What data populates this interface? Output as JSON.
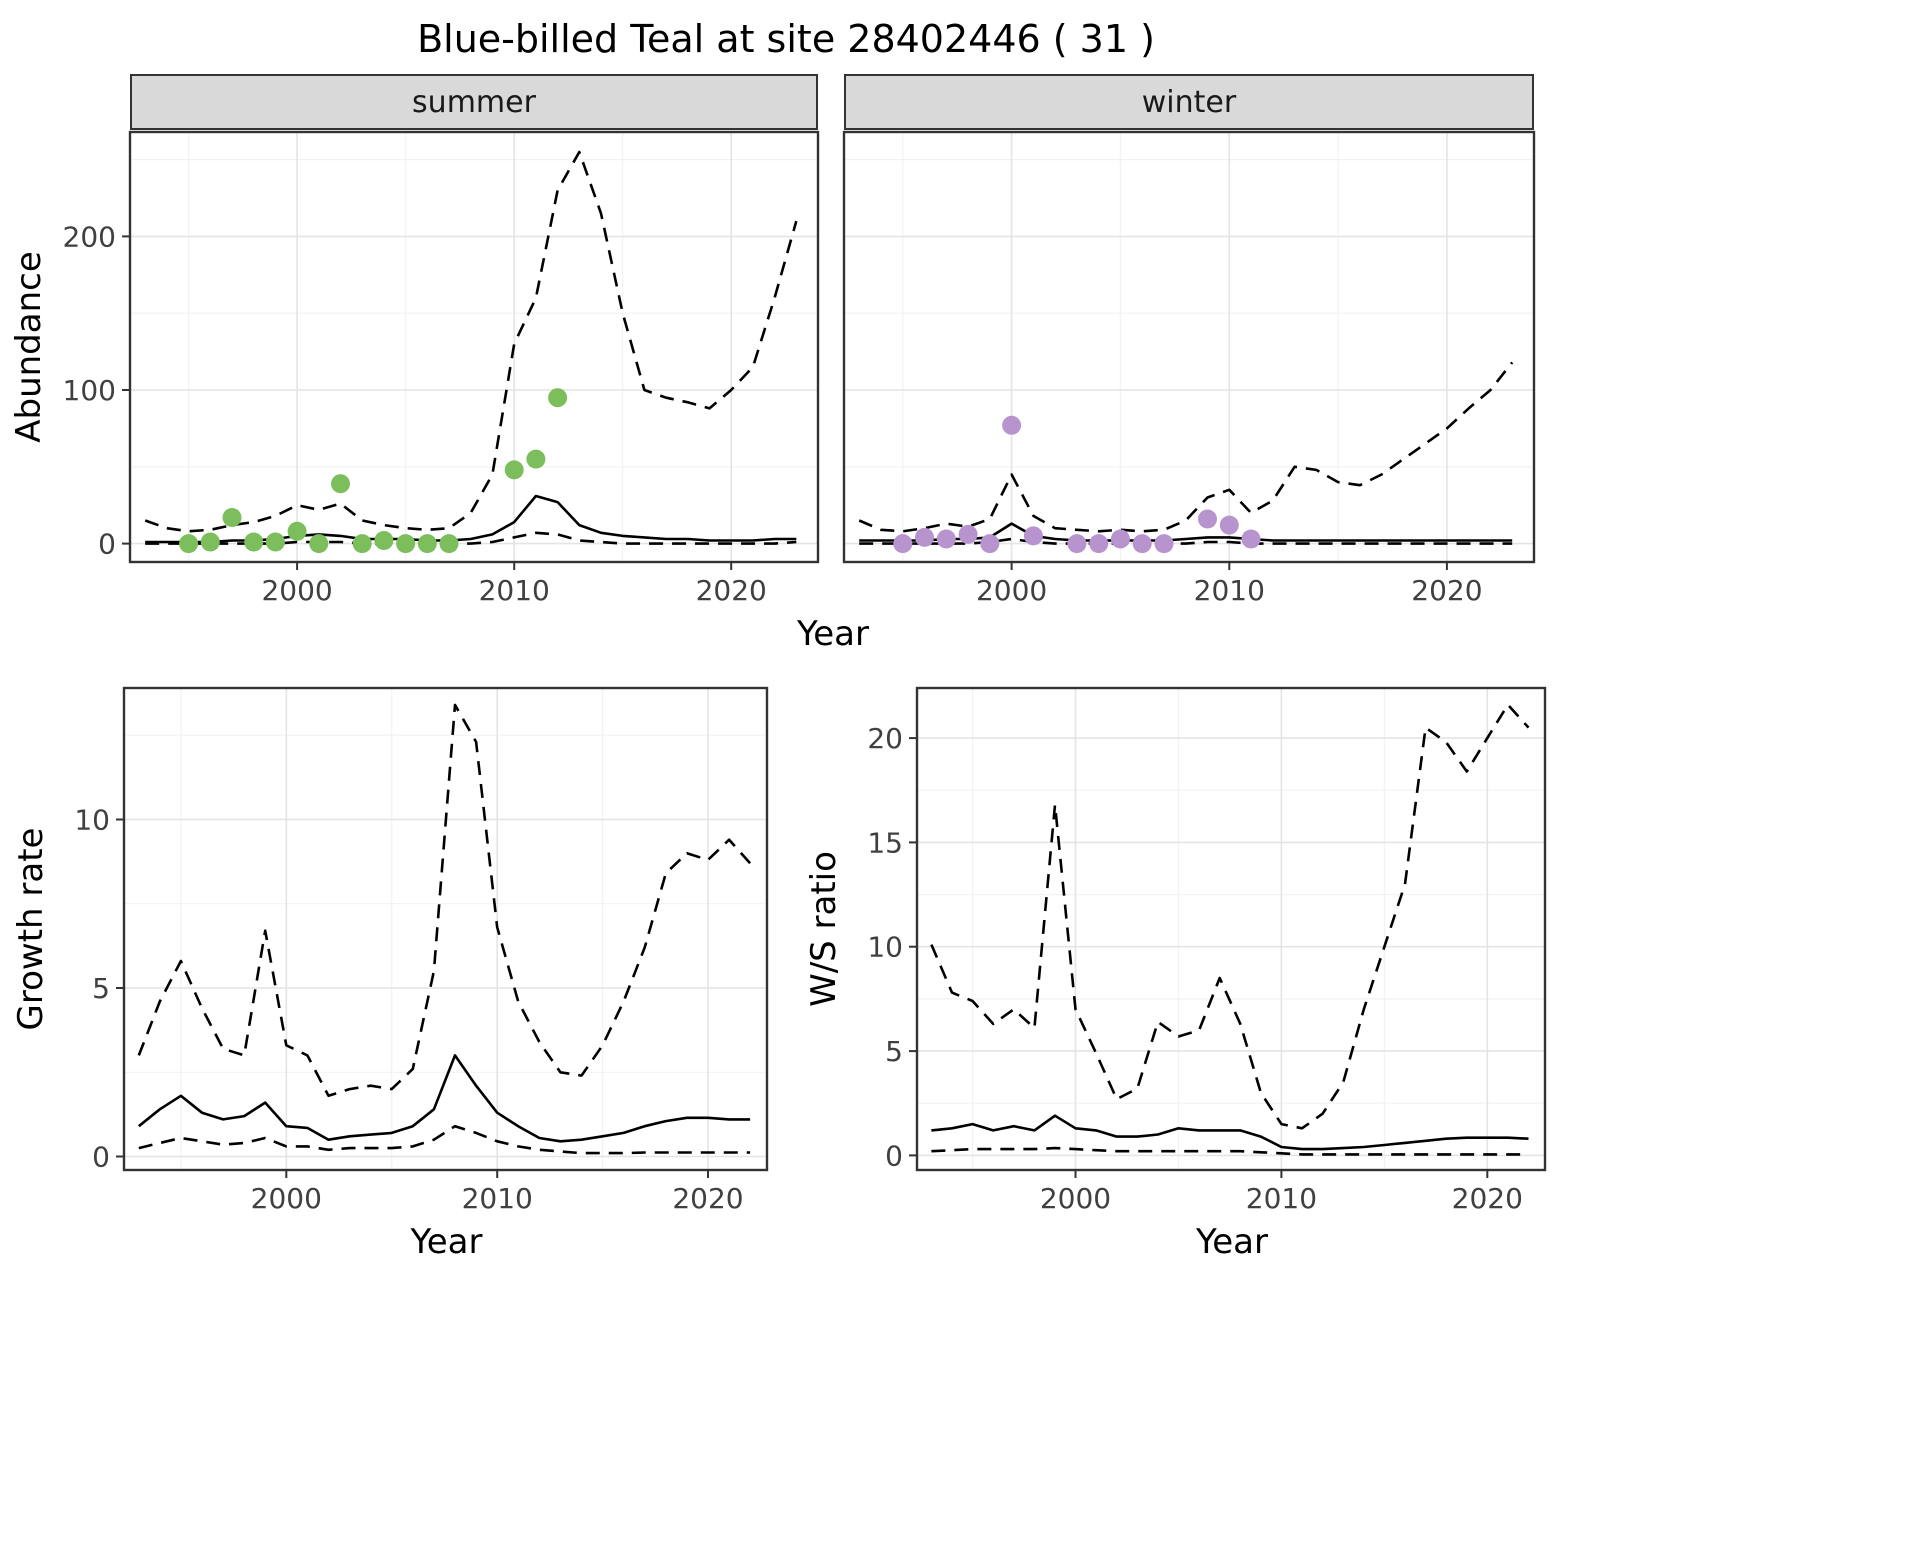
{
  "title": "Blue-billed Teal at site 28402446 ( 31 )",
  "colors": {
    "summer_points": "#7cbe5c",
    "winter_points": "#b894cf",
    "line": "#000000",
    "strip_bg": "#d9d9d9",
    "panel_border": "#333333",
    "grid_major": "#e4e4e4",
    "grid_minor": "#f2f2f2",
    "tick_text": "#404040"
  },
  "chart_data": [
    {
      "id": "abundance_summer",
      "type": "line",
      "facet": "summer",
      "xlabel": "Year",
      "ylabel": "Abundance",
      "xlim": [
        1992.3,
        2024
      ],
      "ylim": [
        -12,
        268
      ],
      "x_ticks": [
        2000,
        2010,
        2020
      ],
      "y_ticks": [
        0,
        100,
        200
      ],
      "series": [
        {
          "name": "median_fit",
          "style": "solid",
          "x": [
            1993,
            1994,
            1995,
            1996,
            1997,
            1998,
            1999,
            2000,
            2001,
            2002,
            2003,
            2004,
            2005,
            2006,
            2007,
            2008,
            2009,
            2010,
            2011,
            2012,
            2013,
            2014,
            2015,
            2016,
            2017,
            2018,
            2019,
            2020,
            2021,
            2022,
            2023
          ],
          "y": [
            1,
            1,
            1,
            1,
            2,
            2,
            3,
            5,
            6,
            5,
            3,
            3,
            3,
            2,
            2,
            3,
            6,
            14,
            31,
            27,
            12,
            7,
            5,
            4,
            3,
            3,
            2,
            2,
            2,
            3,
            3
          ]
        },
        {
          "name": "upper_CI",
          "style": "dashed",
          "x": [
            1993,
            1994,
            1995,
            1996,
            1997,
            1998,
            1999,
            2000,
            2001,
            2002,
            2003,
            2004,
            2005,
            2006,
            2007,
            2008,
            2009,
            2010,
            2011,
            2012,
            2013,
            2014,
            2015,
            2016,
            2017,
            2018,
            2019,
            2020,
            2021,
            2022,
            2023
          ],
          "y": [
            15,
            10,
            8,
            9,
            12,
            14,
            18,
            25,
            22,
            26,
            15,
            12,
            10,
            9,
            10,
            20,
            45,
            130,
            160,
            230,
            255,
            215,
            150,
            100,
            95,
            92,
            88,
            100,
            115,
            160,
            210
          ]
        },
        {
          "name": "lower_CI",
          "style": "dashed",
          "x": [
            1993,
            1994,
            1995,
            1996,
            1997,
            1998,
            1999,
            2000,
            2001,
            2002,
            2003,
            2004,
            2005,
            2006,
            2007,
            2008,
            2009,
            2010,
            2011,
            2012,
            2013,
            2014,
            2015,
            2016,
            2017,
            2018,
            2019,
            2020,
            2021,
            2022,
            2023
          ],
          "y": [
            0,
            0,
            0,
            0,
            0,
            0,
            0,
            1,
            1,
            1,
            0,
            0,
            0,
            0,
            0,
            0,
            1,
            4,
            7,
            6,
            2,
            1,
            0,
            0,
            0,
            0,
            0,
            0,
            0,
            0,
            1
          ]
        },
        {
          "name": "observed_counts",
          "style": "points",
          "color": "#7cbe5c",
          "x": [
            1995,
            1996,
            1997,
            1998,
            1999,
            2000,
            2001,
            2002,
            2003,
            2004,
            2005,
            2006,
            2007,
            2010,
            2011,
            2012
          ],
          "y": [
            0,
            1,
            17,
            1,
            1,
            8,
            0,
            39,
            0,
            2,
            0,
            0,
            0,
            48,
            55,
            95
          ]
        }
      ]
    },
    {
      "id": "abundance_winter",
      "type": "line",
      "facet": "winter",
      "xlabel": "Year",
      "ylabel": "Abundance",
      "xlim": [
        1992.3,
        2024
      ],
      "ylim": [
        -12,
        268
      ],
      "x_ticks": [
        2000,
        2010,
        2020
      ],
      "y_ticks": [
        0,
        100,
        200
      ],
      "series": [
        {
          "name": "median_fit",
          "style": "solid",
          "x": [
            1993,
            1994,
            1995,
            1996,
            1997,
            1998,
            1999,
            2000,
            2001,
            2002,
            2003,
            2004,
            2005,
            2006,
            2007,
            2008,
            2009,
            2010,
            2011,
            2012,
            2013,
            2014,
            2015,
            2016,
            2017,
            2018,
            2019,
            2020,
            2021,
            2022,
            2023
          ],
          "y": [
            2,
            2,
            2,
            2,
            3,
            3,
            4,
            13,
            5,
            3,
            2,
            2,
            2,
            2,
            2,
            3,
            4,
            4,
            3,
            2,
            2,
            2,
            2,
            2,
            2,
            2,
            2,
            2,
            2,
            2,
            2
          ]
        },
        {
          "name": "upper_CI",
          "style": "dashed",
          "x": [
            1993,
            1994,
            1995,
            1996,
            1997,
            1998,
            1999,
            2000,
            2001,
            2002,
            2003,
            2004,
            2005,
            2006,
            2007,
            2008,
            2009,
            2010,
            2011,
            2012,
            2013,
            2014,
            2015,
            2016,
            2017,
            2018,
            2019,
            2020,
            2021,
            2022,
            2023
          ],
          "y": [
            15,
            9,
            8,
            10,
            13,
            11,
            16,
            45,
            18,
            10,
            9,
            8,
            9,
            8,
            9,
            15,
            30,
            35,
            20,
            28,
            50,
            48,
            40,
            38,
            45,
            55,
            65,
            75,
            88,
            100,
            118
          ]
        },
        {
          "name": "lower_CI",
          "style": "dashed",
          "x": [
            1993,
            1994,
            1995,
            1996,
            1997,
            1998,
            1999,
            2000,
            2001,
            2002,
            2003,
            2004,
            2005,
            2006,
            2007,
            2008,
            2009,
            2010,
            2011,
            2012,
            2013,
            2014,
            2015,
            2016,
            2017,
            2018,
            2019,
            2020,
            2021,
            2022,
            2023
          ],
          "y": [
            0,
            0,
            0,
            0,
            0,
            0,
            1,
            3,
            1,
            0,
            0,
            0,
            0,
            0,
            0,
            0,
            1,
            1,
            0,
            0,
            0,
            0,
            0,
            0,
            0,
            0,
            0,
            0,
            0,
            0,
            0
          ]
        },
        {
          "name": "observed_counts",
          "style": "points",
          "color": "#b894cf",
          "x": [
            1995,
            1996,
            1997,
            1998,
            1999,
            2000,
            2001,
            2003,
            2004,
            2005,
            2006,
            2007,
            2009,
            2010,
            2011
          ],
          "y": [
            0,
            4,
            3,
            6,
            0,
            77,
            5,
            0,
            0,
            3,
            0,
            0,
            16,
            12,
            3
          ]
        }
      ]
    },
    {
      "id": "growth_rate",
      "type": "line",
      "xlabel": "Year",
      "ylabel": "Growth rate",
      "xlim": [
        1992.3,
        2022.8
      ],
      "ylim": [
        -0.4,
        13.9
      ],
      "x_ticks": [
        2000,
        2010,
        2020
      ],
      "y_ticks": [
        0,
        5,
        10
      ],
      "series": [
        {
          "name": "median_fit",
          "style": "solid",
          "x": [
            1993,
            1994,
            1995,
            1996,
            1997,
            1998,
            1999,
            2000,
            2001,
            2002,
            2003,
            2004,
            2005,
            2006,
            2007,
            2008,
            2009,
            2010,
            2011,
            2012,
            2013,
            2014,
            2015,
            2016,
            2017,
            2018,
            2019,
            2020,
            2021,
            2022
          ],
          "y": [
            0.9,
            1.4,
            1.8,
            1.3,
            1.1,
            1.2,
            1.6,
            0.9,
            0.85,
            0.5,
            0.6,
            0.65,
            0.7,
            0.9,
            1.4,
            3.0,
            2.1,
            1.3,
            0.9,
            0.55,
            0.45,
            0.5,
            0.6,
            0.7,
            0.9,
            1.05,
            1.15,
            1.15,
            1.1,
            1.1
          ]
        },
        {
          "name": "upper_CI",
          "style": "dashed",
          "x": [
            1993,
            1994,
            1995,
            1996,
            1997,
            1998,
            1999,
            2000,
            2001,
            2002,
            2003,
            2004,
            2005,
            2006,
            2007,
            2008,
            2009,
            2010,
            2011,
            2012,
            2013,
            2014,
            2015,
            2016,
            2017,
            2018,
            2019,
            2020,
            2021,
            2022
          ],
          "y": [
            3.0,
            4.6,
            5.8,
            4.4,
            3.2,
            3.0,
            6.7,
            3.3,
            3.0,
            1.8,
            2.0,
            2.1,
            2.0,
            2.6,
            5.5,
            13.4,
            12.3,
            6.8,
            4.6,
            3.4,
            2.5,
            2.4,
            3.3,
            4.6,
            6.2,
            8.4,
            9.0,
            8.8,
            9.4,
            8.7
          ]
        },
        {
          "name": "lower_CI",
          "style": "dashed",
          "x": [
            1993,
            1994,
            1995,
            1996,
            1997,
            1998,
            1999,
            2000,
            2001,
            2002,
            2003,
            2004,
            2005,
            2006,
            2007,
            2008,
            2009,
            2010,
            2011,
            2012,
            2013,
            2014,
            2015,
            2016,
            2017,
            2018,
            2019,
            2020,
            2021,
            2022
          ],
          "y": [
            0.25,
            0.4,
            0.55,
            0.45,
            0.35,
            0.4,
            0.55,
            0.3,
            0.3,
            0.2,
            0.25,
            0.25,
            0.25,
            0.3,
            0.5,
            0.9,
            0.7,
            0.45,
            0.3,
            0.2,
            0.15,
            0.1,
            0.1,
            0.1,
            0.12,
            0.12,
            0.12,
            0.12,
            0.12,
            0.12
          ]
        }
      ]
    },
    {
      "id": "ws_ratio",
      "type": "line",
      "xlabel": "Year",
      "ylabel": "W/S ratio",
      "xlim": [
        1992.3,
        2022.8
      ],
      "ylim": [
        -0.7,
        22.4
      ],
      "x_ticks": [
        2000,
        2010,
        2020
      ],
      "y_ticks": [
        0,
        5,
        10,
        15,
        20
      ],
      "series": [
        {
          "name": "median_fit",
          "style": "solid",
          "x": [
            1993,
            1994,
            1995,
            1996,
            1997,
            1998,
            1999,
            2000,
            2001,
            2002,
            2003,
            2004,
            2005,
            2006,
            2007,
            2008,
            2009,
            2010,
            2011,
            2012,
            2013,
            2014,
            2015,
            2016,
            2017,
            2018,
            2019,
            2020,
            2021,
            2022
          ],
          "y": [
            1.2,
            1.3,
            1.5,
            1.2,
            1.4,
            1.2,
            1.9,
            1.3,
            1.2,
            0.9,
            0.9,
            1.0,
            1.3,
            1.2,
            1.2,
            1.2,
            0.9,
            0.4,
            0.3,
            0.3,
            0.35,
            0.4,
            0.5,
            0.6,
            0.7,
            0.8,
            0.85,
            0.85,
            0.85,
            0.8
          ]
        },
        {
          "name": "upper_CI",
          "style": "dashed",
          "x": [
            1993,
            1994,
            1995,
            1996,
            1997,
            1998,
            1999,
            2000,
            2001,
            2002,
            2003,
            2004,
            2005,
            2006,
            2007,
            2008,
            2009,
            2010,
            2011,
            2012,
            2013,
            2014,
            2015,
            2016,
            2017,
            2018,
            2019,
            2020,
            2021,
            2022
          ],
          "y": [
            10.1,
            7.8,
            7.4,
            6.3,
            7.0,
            6.1,
            16.8,
            7.0,
            4.9,
            2.7,
            3.2,
            6.4,
            5.7,
            6.0,
            8.5,
            6.3,
            3.0,
            1.5,
            1.3,
            2.0,
            3.5,
            7.0,
            10.0,
            13.0,
            20.5,
            19.8,
            18.4,
            20.0,
            21.6,
            20.5
          ]
        },
        {
          "name": "lower_CI",
          "style": "dashed",
          "x": [
            1993,
            1994,
            1995,
            1996,
            1997,
            1998,
            1999,
            2000,
            2001,
            2002,
            2003,
            2004,
            2005,
            2006,
            2007,
            2008,
            2009,
            2010,
            2011,
            2012,
            2013,
            2014,
            2015,
            2016,
            2017,
            2018,
            2019,
            2020,
            2021,
            2022
          ],
          "y": [
            0.2,
            0.25,
            0.3,
            0.3,
            0.3,
            0.3,
            0.35,
            0.3,
            0.25,
            0.2,
            0.2,
            0.2,
            0.2,
            0.2,
            0.2,
            0.2,
            0.15,
            0.1,
            0.05,
            0.05,
            0.05,
            0.05,
            0.05,
            0.05,
            0.05,
            0.05,
            0.05,
            0.05,
            0.05,
            0.05
          ]
        }
      ]
    }
  ]
}
